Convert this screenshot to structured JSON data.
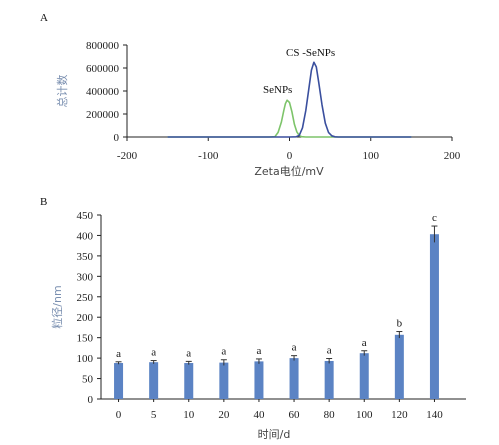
{
  "chart_data": [
    {
      "type": "line",
      "panel_label": "A",
      "xlabel": "Zeta电位/mV",
      "ylabel": "总计数",
      "xlim": [
        -200,
        200
      ],
      "ylim": [
        0,
        800000
      ],
      "x_ticks": [
        "-200",
        "-100",
        "0",
        "100",
        "200"
      ],
      "y_ticks": [
        "0",
        "200000",
        "400000",
        "600000",
        "800000"
      ],
      "grid": false,
      "series": [
        {
          "name": "SeNPs",
          "color": "#7dc46a",
          "x": [
            -150,
            -40,
            -25,
            -18,
            -14,
            -10,
            -7,
            -5,
            -3,
            0,
            3,
            6,
            9,
            12,
            15,
            20,
            30,
            60,
            150
          ],
          "y": [
            0,
            0,
            0,
            3000,
            40000,
            130000,
            230000,
            290000,
            320000,
            300000,
            220000,
            110000,
            45000,
            12000,
            3000,
            0,
            0,
            0,
            0
          ]
        },
        {
          "name": "CS -SeNPs",
          "color": "#3a4f9e",
          "x": [
            -150,
            0,
            8,
            12,
            16,
            20,
            24,
            27,
            30,
            33,
            36,
            40,
            44,
            48,
            52,
            56,
            60,
            70,
            150
          ],
          "y": [
            0,
            0,
            2000,
            15000,
            80000,
            230000,
            430000,
            580000,
            650000,
            610000,
            470000,
            280000,
            120000,
            40000,
            10000,
            2000,
            0,
            0,
            0
          ]
        }
      ]
    },
    {
      "type": "bar",
      "panel_label": "B",
      "xlabel": "时间/d",
      "ylabel": "粒径/nm",
      "ylim": [
        0,
        450
      ],
      "y_ticks": [
        "0",
        "50",
        "100",
        "150",
        "200",
        "250",
        "300",
        "350",
        "400",
        "450"
      ],
      "categories": [
        "0",
        "5",
        "10",
        "20",
        "40",
        "60",
        "80",
        "100",
        "120",
        "140"
      ],
      "values": [
        88,
        90,
        88,
        89,
        92,
        100,
        93,
        112,
        157,
        403
      ],
      "errors": [
        3,
        4,
        4,
        7,
        6,
        6,
        6,
        6,
        8,
        20
      ],
      "letters": [
        "a",
        "a",
        "a",
        "a",
        "a",
        "a",
        "a",
        "a",
        "b",
        "c"
      ],
      "bar_color": "#5b83c4",
      "grid": false
    }
  ]
}
